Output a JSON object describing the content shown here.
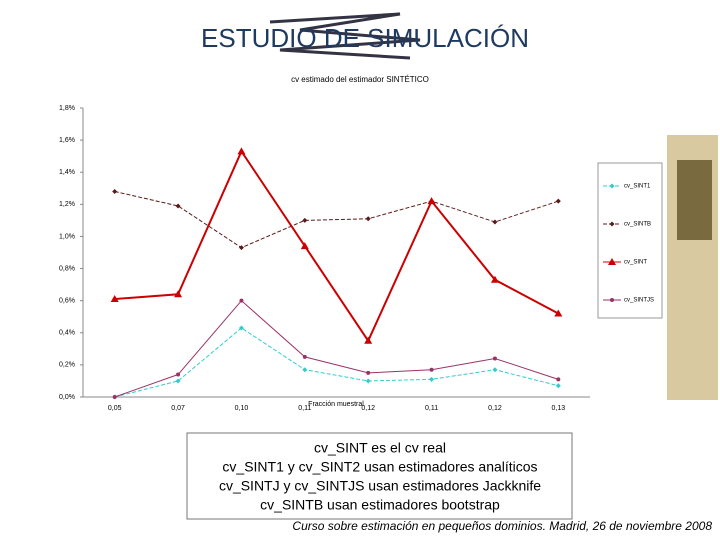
{
  "slide": {
    "title": "ESTUDIO DE SIMULACIÓN",
    "notes": [
      "cv_SINT es el cv real",
      "cv_SINT1 y cv_SINT2 usan estimadores analíticos",
      "cv_SINTJ y cv_SINTJS usan estimadores Jackknife",
      "cv_SINTB usan estimadores bootstrap"
    ],
    "footer": "Curso sobre estimación en pequeños dominios. Madrid, 26 de noviembre 2008"
  },
  "chart_data": {
    "type": "line",
    "title": "cv estimado del estimador SINTÉTICO",
    "x_label": "Fracción muestral",
    "categories": [
      "0,05",
      "0,07",
      "0,10",
      "0,11",
      "0,12",
      "0,11",
      "0,12",
      "0,13"
    ],
    "series": [
      {
        "name": "cv_SINT1",
        "color": "#33cccc",
        "marker": "diamond",
        "dash": true,
        "values": [
          0,
          0.1,
          0.43,
          0.17,
          0.1,
          0.11,
          0.17,
          0.07
        ]
      },
      {
        "name": "cv_SINTB",
        "color": "#5a1a1a",
        "marker": "diamond",
        "dash": true,
        "values": [
          1.28,
          1.19,
          0.93,
          1.1,
          1.11,
          1.22,
          1.09,
          1.22
        ]
      },
      {
        "name": "cv_SINT",
        "color": "#cc0000",
        "marker": "triangle",
        "dash": false,
        "values": [
          0.61,
          0.64,
          1.53,
          0.94,
          0.35,
          1.22,
          0.73,
          0.52
        ]
      },
      {
        "name": "cv_SINTJS",
        "color": "#993366",
        "marker": "circle",
        "dash": false,
        "values": [
          0,
          0.14,
          0.6,
          0.25,
          0.15,
          0.17,
          0.24,
          0.11
        ]
      }
    ],
    "ylim": [
      0,
      1.8
    ],
    "yticks": [
      {
        "value": 0,
        "label": "0,0%"
      },
      {
        "value": 0.2,
        "label": "0,2%"
      },
      {
        "value": 0.4,
        "label": "0,4%"
      },
      {
        "value": 0.6,
        "label": "0,6%"
      },
      {
        "value": 0.8,
        "label": "0,8%"
      },
      {
        "value": 1.0,
        "label": "1,0%"
      },
      {
        "value": 1.2,
        "label": "1,2%"
      },
      {
        "value": 1.4,
        "label": "1,4%"
      },
      {
        "value": 1.6,
        "label": "1,6%"
      },
      {
        "value": 1.8,
        "label": "1,8%"
      }
    ],
    "grid": false
  }
}
